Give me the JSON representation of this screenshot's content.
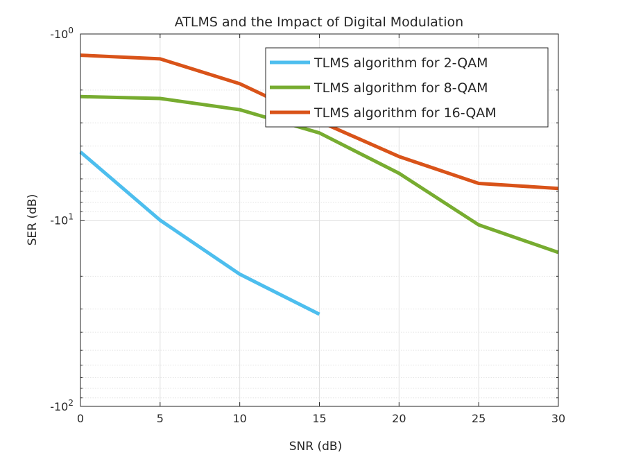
{
  "chart_data": {
    "type": "line",
    "title": "ATLMS and the Impact of Digital Modulation",
    "xlabel": "SNR (dB)",
    "ylabel": "SER (dB)",
    "xlim": [
      0,
      30
    ],
    "ylim": [
      -100,
      -1
    ],
    "yscale": "log",
    "grid": true,
    "legend_position": "top-right",
    "x_ticks": [
      "0",
      "5",
      "10",
      "15",
      "20",
      "25",
      "30"
    ],
    "y_ticks": [
      {
        "base": "-10",
        "exp": "0"
      },
      {
        "base": "-10",
        "exp": "1"
      },
      {
        "base": "-10",
        "exp": "2"
      }
    ],
    "series": [
      {
        "name": "TLMS algorithm for 2-QAM",
        "color": "#4DBEEE",
        "x": [
          0,
          5,
          10,
          15
        ],
        "y": [
          -4.3,
          -10.0,
          -19.5,
          -32.0
        ]
      },
      {
        "name": "TLMS algorithm for 8-QAM",
        "color": "#77AC30",
        "x": [
          0,
          5,
          10,
          15,
          20,
          25,
          30
        ],
        "y": [
          -2.17,
          -2.22,
          -2.55,
          -3.4,
          -5.6,
          -10.6,
          -14.9
        ]
      },
      {
        "name": "TLMS algorithm for 16-QAM",
        "color": "#D95319",
        "x": [
          0,
          5,
          10,
          15,
          20,
          25,
          30
        ],
        "y": [
          -1.3,
          -1.36,
          -1.85,
          -2.95,
          -4.55,
          -6.35,
          -6.75
        ]
      }
    ]
  }
}
